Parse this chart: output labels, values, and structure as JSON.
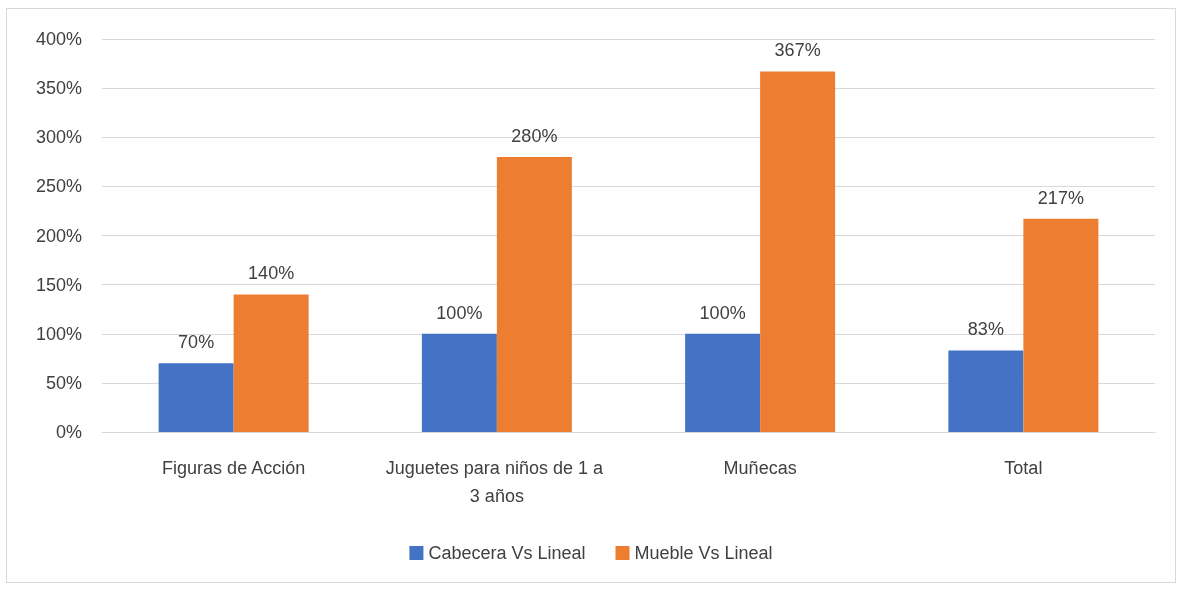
{
  "chart_data": {
    "type": "bar",
    "categories": [
      "Figuras de Acción",
      "Juguetes para niños de 1 a 3 años",
      "Muñecas",
      "Total"
    ],
    "series": [
      {
        "name": "Cabecera Vs Lineal",
        "color": "#4472c4",
        "values": [
          70,
          100,
          100,
          83
        ],
        "value_labels": [
          "70%",
          "100%",
          "100%",
          "83%"
        ]
      },
      {
        "name": "Mueble Vs Lineal",
        "color": "#ed7d31",
        "values": [
          140,
          280,
          367,
          217
        ],
        "value_labels": [
          "140%",
          "280%",
          "367%",
          "217%"
        ]
      }
    ],
    "ylim": [
      0,
      400
    ],
    "yticks": [
      {
        "value": 0,
        "label": "0%"
      },
      {
        "value": 50,
        "label": "50%"
      },
      {
        "value": 100,
        "label": "100%"
      },
      {
        "value": 150,
        "label": "150%"
      },
      {
        "value": 200,
        "label": "200%"
      },
      {
        "value": 250,
        "label": "250%"
      },
      {
        "value": 300,
        "label": "300%"
      },
      {
        "value": 350,
        "label": "350%"
      },
      {
        "value": 400,
        "label": "400%"
      }
    ],
    "grid": "y",
    "legend": "bottom"
  }
}
